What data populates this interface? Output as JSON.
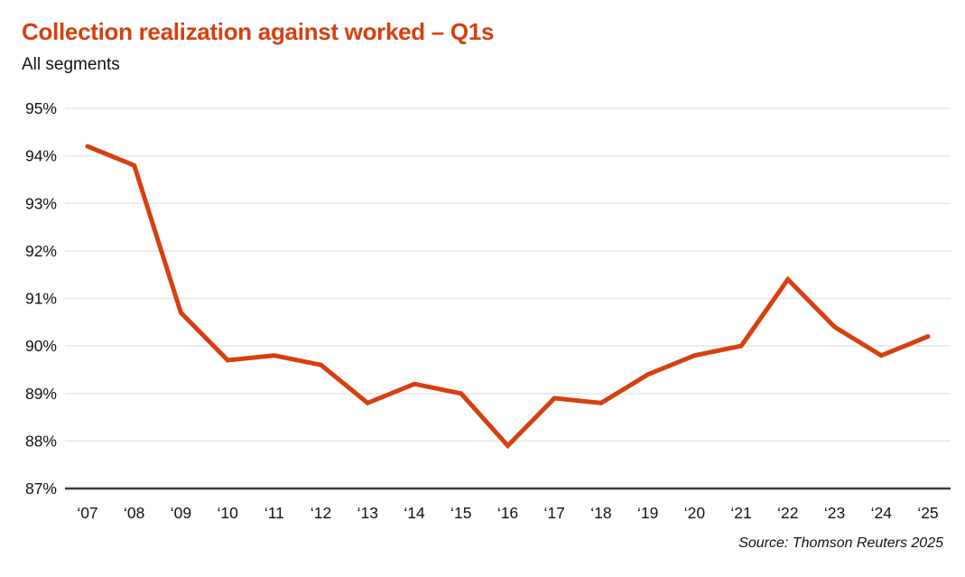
{
  "header": {
    "title": "Collection realization against worked – Q1s",
    "subtitle": "All segments"
  },
  "footer": {
    "source": "Source: Thomson Reuters 2025"
  },
  "colors": {
    "accent": "#d6400f",
    "grid": "#e7e7e7",
    "axis": "#3c3c3c",
    "text": "#121212"
  },
  "chart_data": {
    "type": "line",
    "title": "Collection realization against worked – Q1s",
    "subtitle": "All segments",
    "categories": [
      "‘07",
      "‘08",
      "‘09",
      "‘10",
      "‘11",
      "‘12",
      "‘13",
      "‘14",
      "‘15",
      "‘16",
      "‘17",
      "‘18",
      "‘19",
      "‘20",
      "‘21",
      "‘22",
      "‘23",
      "‘24",
      "‘25"
    ],
    "values": [
      94.2,
      93.8,
      90.7,
      89.7,
      89.8,
      89.6,
      88.8,
      89.2,
      89.0,
      87.9,
      88.9,
      88.8,
      89.4,
      89.8,
      90.0,
      91.4,
      90.4,
      89.8,
      90.2
    ],
    "unit": "%",
    "xlabel": "",
    "ylabel": "",
    "ylim": [
      87,
      95
    ],
    "ytick_step": 1,
    "ytick_labels": [
      "95%",
      "94%",
      "93%",
      "92%",
      "91%",
      "90%",
      "89%",
      "88%",
      "87%"
    ],
    "grid": "horizontal-only",
    "legend": "none",
    "line_color": "#d6400f",
    "source": "Source: Thomson Reuters 2025"
  }
}
